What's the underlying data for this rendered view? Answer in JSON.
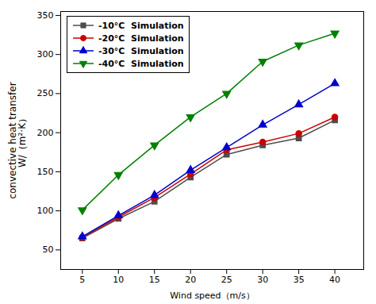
{
  "chart_data": {
    "type": "line",
    "xlabel": "Wind speed（m/s）",
    "ylabel": "convective heat transfer\nW/（m²·K）",
    "x": [
      5,
      10,
      15,
      20,
      25,
      30,
      35,
      40
    ],
    "series": [
      {
        "name": "-10°C  Simulation",
        "color": "#4d4d4d",
        "marker": "square",
        "values": [
          65,
          90,
          112,
          143,
          172,
          184,
          193,
          216
        ]
      },
      {
        "name": "-20°C  Simulation",
        "color": "#cc0000",
        "marker": "circle",
        "values": [
          66,
          92,
          117,
          147,
          178,
          188,
          199,
          220
        ]
      },
      {
        "name": "-30°C  Simulation",
        "color": "#0000cc",
        "marker": "triangle-up",
        "values": [
          67,
          94,
          120,
          152,
          181,
          210,
          236,
          263
        ]
      },
      {
        "name": "-40°C  Simulation",
        "color": "#008000",
        "marker": "triangle-down",
        "values": [
          101,
          146,
          184,
          220,
          250,
          291,
          312,
          327
        ]
      }
    ],
    "xlim": [
      2,
      44
    ],
    "ylim": [
      25,
      355
    ],
    "xticks": [
      5,
      10,
      15,
      20,
      25,
      30,
      35,
      40
    ],
    "yticks": [
      50,
      100,
      150,
      200,
      250,
      300,
      350
    ],
    "grid": false,
    "legend": "upper left"
  }
}
